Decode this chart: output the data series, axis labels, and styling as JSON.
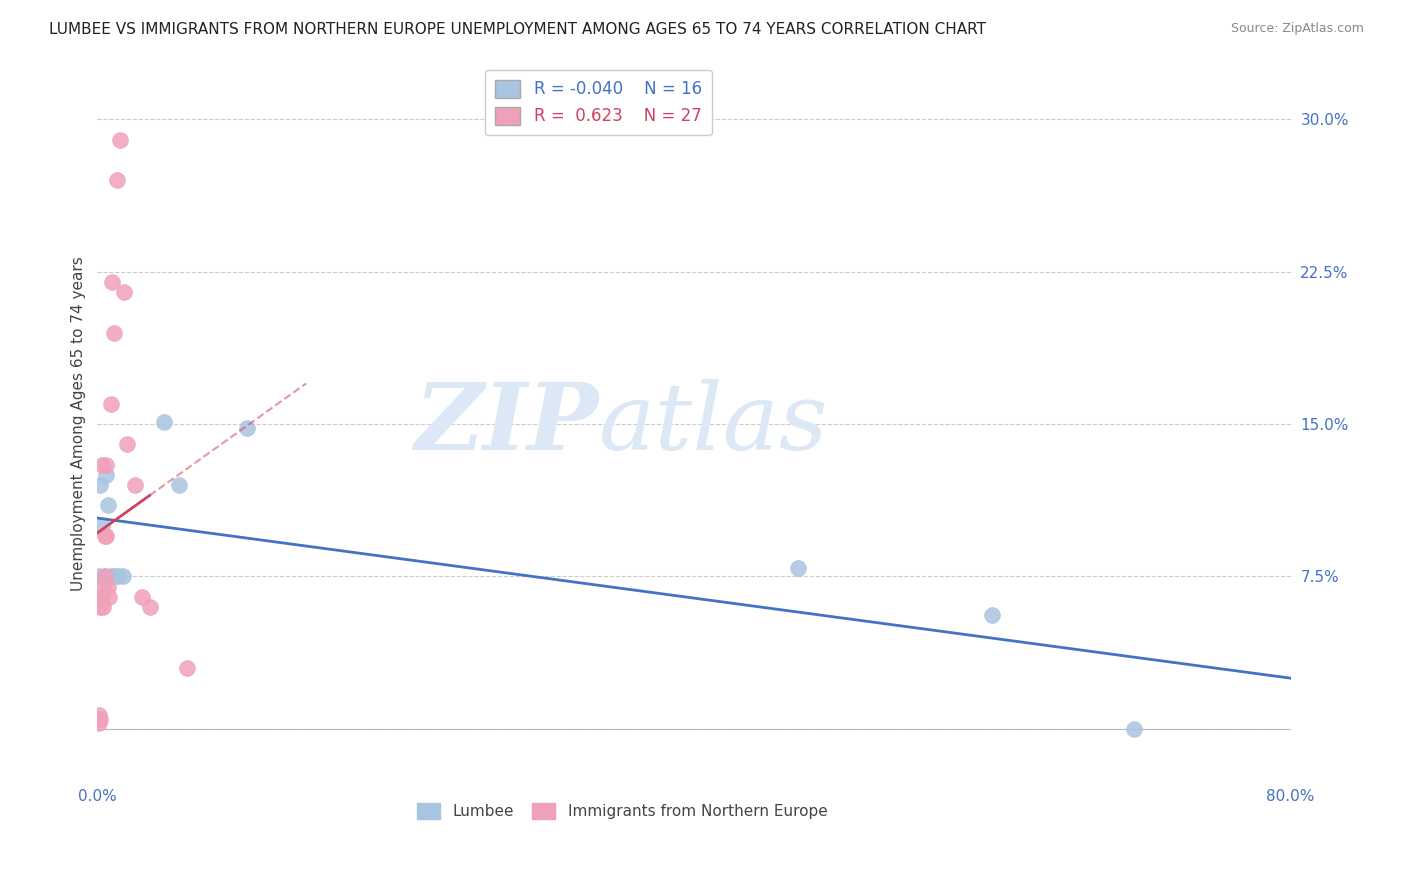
{
  "title": "LUMBEE VS IMMIGRANTS FROM NORTHERN EUROPE UNEMPLOYMENT AMONG AGES 65 TO 74 YEARS CORRELATION CHART",
  "source": "Source: ZipAtlas.com",
  "ylabel": "Unemployment Among Ages 65 to 74 years",
  "xlim": [
    0.0,
    0.8
  ],
  "ylim": [
    -0.025,
    0.325
  ],
  "yticks": [
    0.0,
    0.075,
    0.15,
    0.225,
    0.3
  ],
  "xticks": [
    0.0,
    0.1,
    0.2,
    0.3,
    0.4,
    0.5,
    0.6,
    0.7,
    0.8
  ],
  "grid_color": "#cccccc",
  "background_color": "#ffffff",
  "lumbee_color": "#a8c4e0",
  "immigrants_color": "#f0a0b8",
  "lumbee_line_color": "#4472c4",
  "immigrants_line_color": "#d04060",
  "lumbee_r": -0.04,
  "lumbee_n": 16,
  "immigrants_r": 0.623,
  "immigrants_n": 27,
  "lumbee_x": [
    0.001,
    0.002,
    0.003,
    0.005,
    0.006,
    0.007,
    0.009,
    0.011,
    0.014,
    0.017,
    0.045,
    0.055,
    0.1,
    0.47,
    0.6,
    0.695
  ],
  "lumbee_y": [
    0.075,
    0.12,
    0.1,
    0.075,
    0.125,
    0.11,
    0.075,
    0.075,
    0.075,
    0.075,
    0.151,
    0.12,
    0.148,
    0.079,
    0.056,
    0.0
  ],
  "immigrants_x": [
    0.001,
    0.001,
    0.001,
    0.002,
    0.002,
    0.002,
    0.003,
    0.003,
    0.004,
    0.004,
    0.005,
    0.005,
    0.006,
    0.006,
    0.007,
    0.008,
    0.009,
    0.01,
    0.011,
    0.013,
    0.015,
    0.018,
    0.02,
    0.025,
    0.03,
    0.035,
    0.06
  ],
  "immigrants_y": [
    0.003,
    0.005,
    0.007,
    0.005,
    0.06,
    0.065,
    0.065,
    0.13,
    0.06,
    0.07,
    0.075,
    0.095,
    0.095,
    0.13,
    0.07,
    0.065,
    0.16,
    0.22,
    0.195,
    0.27,
    0.29,
    0.215,
    0.14,
    0.12,
    0.065,
    0.06,
    0.03
  ],
  "watermark_zip": "ZIP",
  "watermark_atlas": "atlas",
  "watermark_color": "#dce8f5",
  "axis_color": "#4472c4",
  "title_fontsize": 11,
  "label_fontsize": 11,
  "tick_fontsize": 11,
  "source_fontsize": 9
}
